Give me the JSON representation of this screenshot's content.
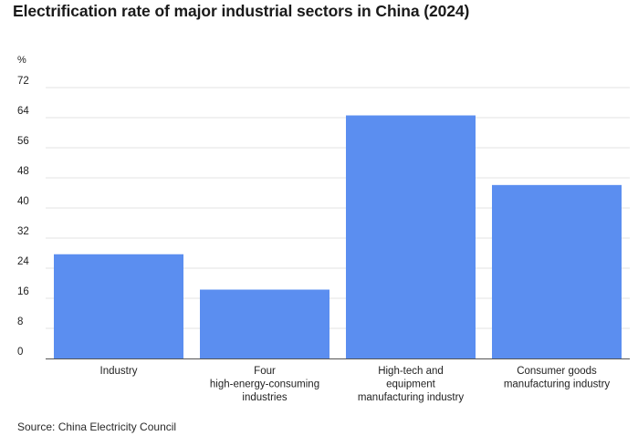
{
  "title": "Electrification rate of major industrial sectors in China (2024)",
  "source": "Source: China Electricity Council",
  "chart_data": {
    "type": "bar",
    "title": "Electrification rate of major industrial sectors in China (2024)",
    "ylabel": "%",
    "xlabel": "",
    "ylim": [
      0,
      72
    ],
    "yticks": [
      "0",
      "8",
      "16",
      "24",
      "32",
      "40",
      "48",
      "56",
      "64",
      "72"
    ],
    "categories": [
      [
        "Industry"
      ],
      [
        "Four",
        "high-energy-consuming",
        "industries"
      ],
      [
        "High-tech and",
        "equipment",
        "manufacturing industry"
      ],
      [
        "Consumer goods",
        "manufacturing industry"
      ]
    ],
    "values": [
      27.7,
      18.3,
      64.6,
      46.1
    ],
    "bar_color": "#5b8ef0",
    "grid": true,
    "legend": "none"
  }
}
